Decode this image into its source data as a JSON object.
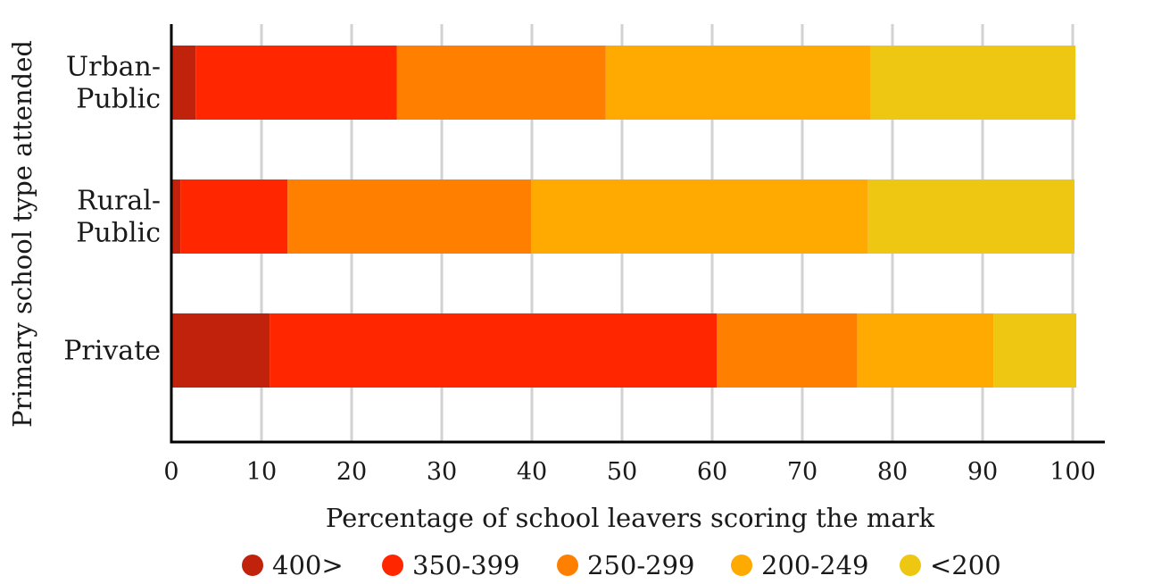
{
  "chart_data": {
    "type": "bar",
    "orientation": "horizontal",
    "stacked": true,
    "title": "",
    "xlabel": "Percentage of school leavers scoring the mark",
    "ylabel": "Primary school type attended",
    "xlim": [
      0,
      100
    ],
    "xticks": [
      "0",
      "10",
      "20",
      "30",
      "40",
      "50",
      "60",
      "70",
      "80",
      "90",
      "100"
    ],
    "grid": "vertical",
    "legend_position": "bottom",
    "categories": [
      {
        "lines": [
          "Urban-",
          "Public"
        ]
      },
      {
        "lines": [
          "Rural-",
          "Public"
        ]
      },
      {
        "lines": [
          "Private"
        ]
      }
    ],
    "series": [
      {
        "name": "400>",
        "color": "#c0220c",
        "values": [
          2.7,
          1.0,
          10.9
        ]
      },
      {
        "name": "350-399",
        "color": "#ff2600",
        "values": [
          22.3,
          11.9,
          49.6
        ]
      },
      {
        "name": "250-299",
        "color": "#ff8000",
        "values": [
          23.2,
          27.0,
          15.6
        ]
      },
      {
        "name": "200-249",
        "color": "#ffaa00",
        "values": [
          29.4,
          37.4,
          15.1
        ]
      },
      {
        "name": "<200",
        "color": "#eec713",
        "values": [
          22.7,
          22.9,
          9.2
        ]
      }
    ]
  }
}
